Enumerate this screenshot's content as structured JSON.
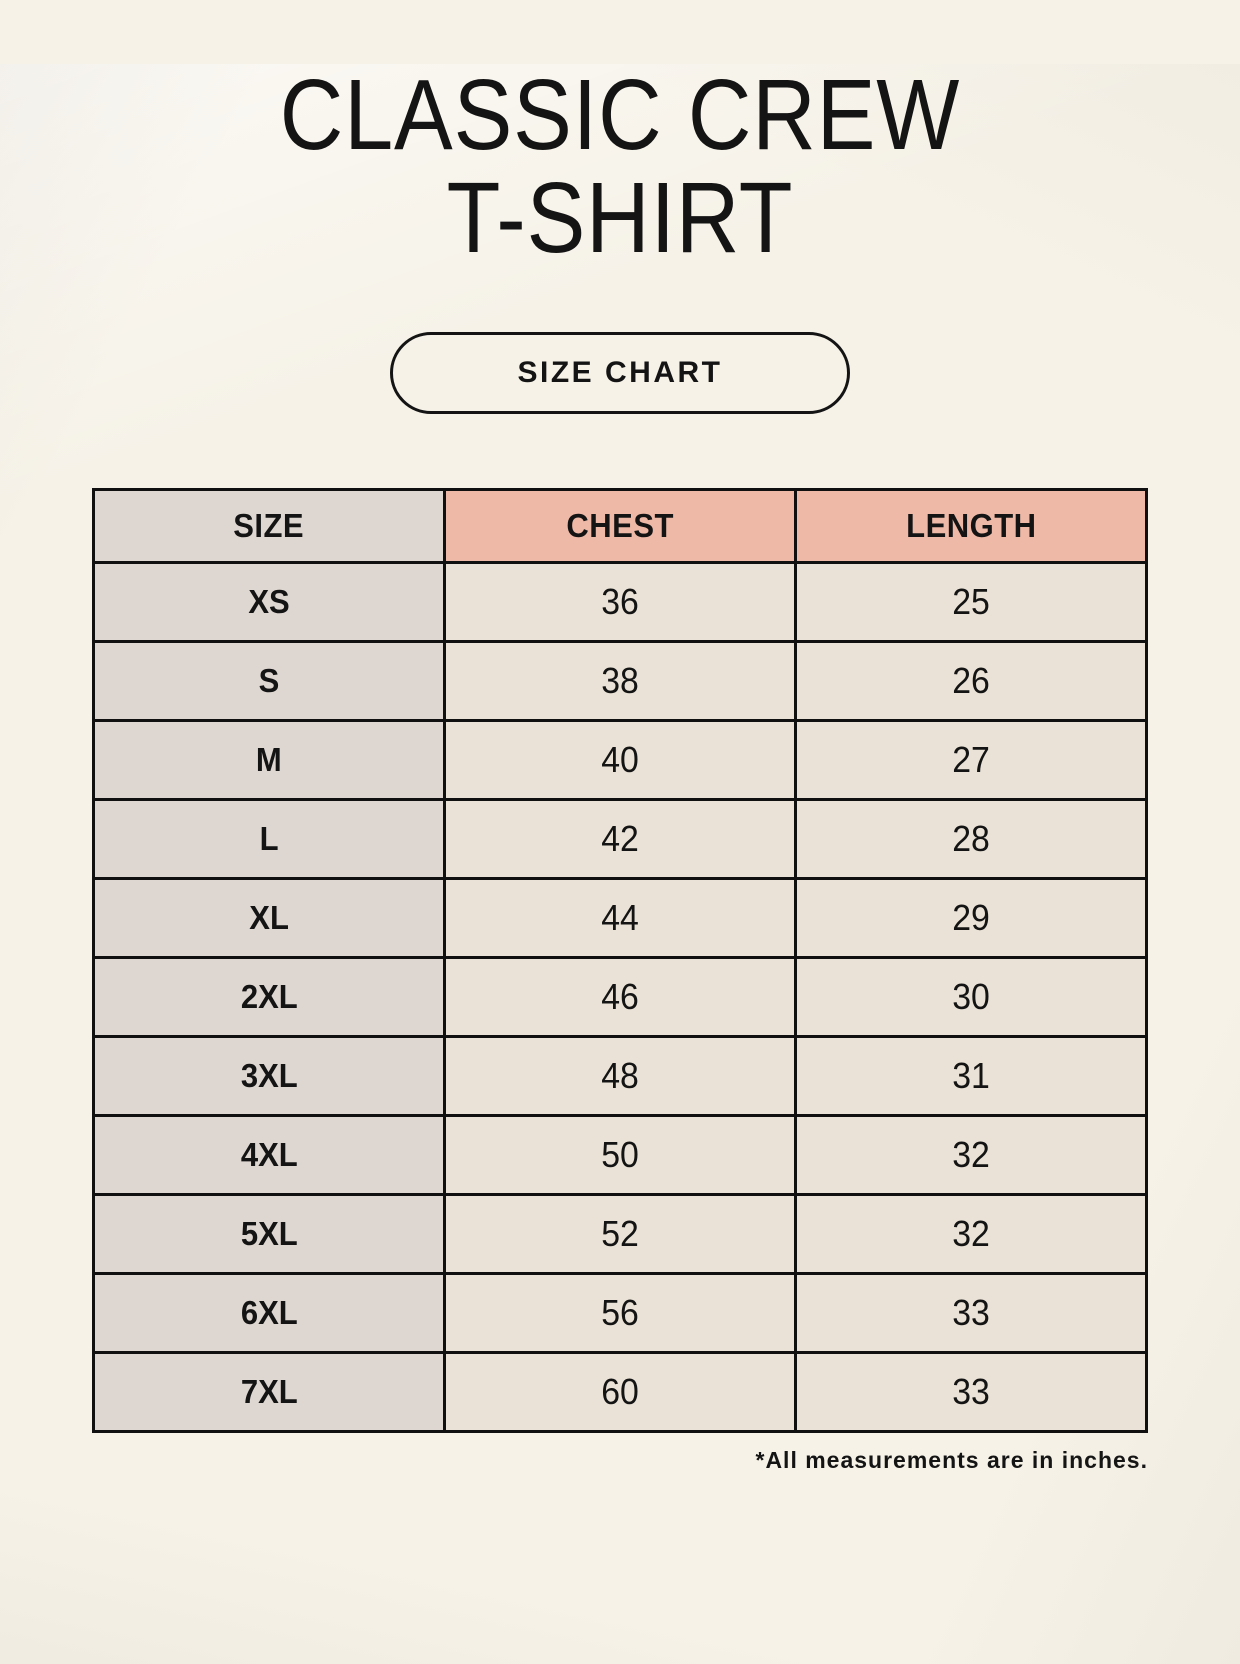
{
  "header": {
    "title_line1": "CLASSIC CREW",
    "title_line2": "T-SHIRT",
    "badge_label": "SIZE CHART"
  },
  "table": {
    "headers": [
      "SIZE",
      "CHEST",
      "LENGTH"
    ],
    "rows": [
      {
        "size": "XS",
        "chest": "36",
        "length": "25"
      },
      {
        "size": "S",
        "chest": "38",
        "length": "26"
      },
      {
        "size": "M",
        "chest": "40",
        "length": "27"
      },
      {
        "size": "L",
        "chest": "42",
        "length": "28"
      },
      {
        "size": "XL",
        "chest": "44",
        "length": "29"
      },
      {
        "size": "2XL",
        "chest": "46",
        "length": "30"
      },
      {
        "size": "3XL",
        "chest": "48",
        "length": "31"
      },
      {
        "size": "4XL",
        "chest": "50",
        "length": "32"
      },
      {
        "size": "5XL",
        "chest": "52",
        "length": "32"
      },
      {
        "size": "6XL",
        "chest": "56",
        "length": "33"
      },
      {
        "size": "7XL",
        "chest": "60",
        "length": "33"
      }
    ]
  },
  "footnote": {
    "text": "*All measurements are in inches."
  },
  "colors": {
    "background": "#f6f2e8",
    "header_accent": "#efb9a7",
    "size_column": "#ded6d1",
    "value_cell": "#eae2d6",
    "border": "#101010",
    "text": "#141414"
  },
  "units": "inches"
}
